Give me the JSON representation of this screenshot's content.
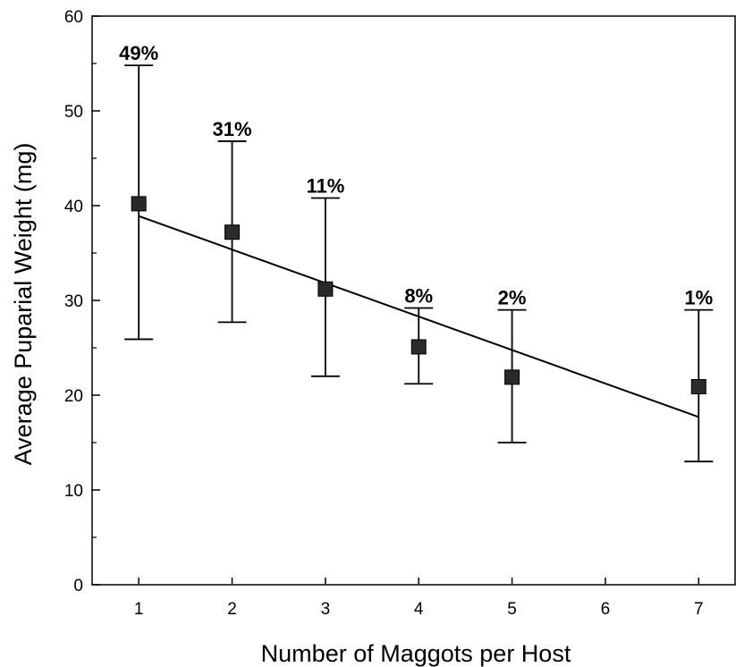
{
  "chart_data": {
    "type": "scatter",
    "xlabel": "Number of Maggots per Host",
    "ylabel": "Average Puparial Weight (mg)",
    "xlim": [
      0.5,
      7.4
    ],
    "ylim": [
      0,
      60
    ],
    "x_ticks": [
      "1",
      "2",
      "3",
      "4",
      "5",
      "6",
      "7"
    ],
    "y_ticks": [
      "0",
      "10",
      "20",
      "30",
      "40",
      "50",
      "60"
    ],
    "grid": false,
    "points": [
      {
        "x": 1,
        "y": 40.2,
        "err_low": 25.9,
        "err_high": 54.8,
        "label": "49%"
      },
      {
        "x": 2,
        "y": 37.2,
        "err_low": 27.7,
        "err_high": 46.8,
        "label": "31%"
      },
      {
        "x": 3,
        "y": 31.2,
        "err_low": 22.0,
        "err_high": 40.8,
        "label": "11%"
      },
      {
        "x": 4,
        "y": 25.1,
        "err_low": 21.2,
        "err_high": 29.2,
        "label": "8%"
      },
      {
        "x": 5,
        "y": 21.9,
        "err_low": 15.0,
        "err_high": 29.0,
        "label": "2%"
      },
      {
        "x": 7,
        "y": 20.9,
        "err_low": 13.0,
        "err_high": 29.0,
        "label": "1%"
      }
    ],
    "trendline": {
      "x": [
        1,
        7
      ],
      "y": [
        38.9,
        17.7
      ]
    },
    "colors": {
      "marker": "#2a2a2a",
      "line": "#000000"
    }
  }
}
